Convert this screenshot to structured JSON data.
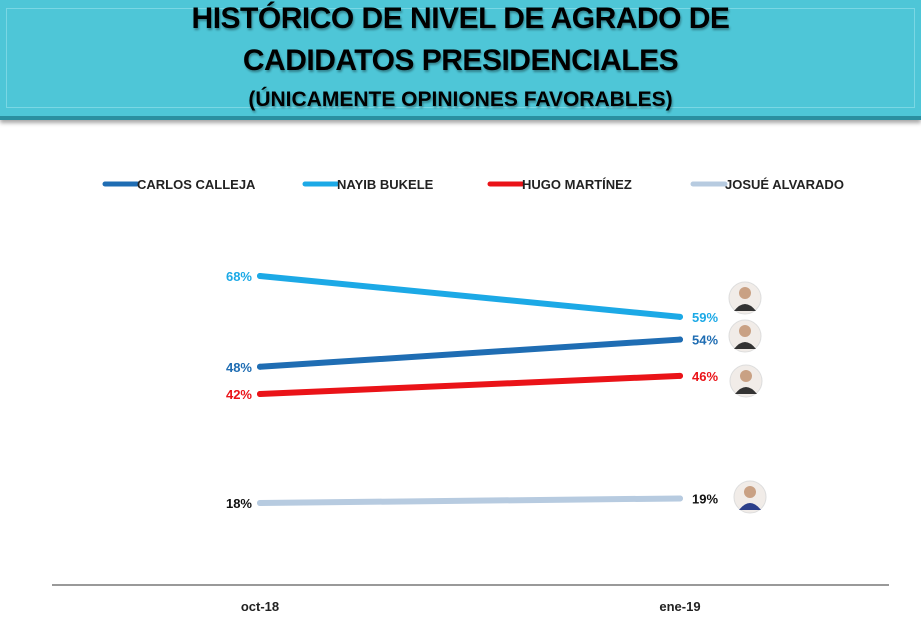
{
  "chart_data": {
    "type": "line",
    "title": "HISTÓRICO DE NIVEL DE AGRADO DE",
    "title_line2": "CADIDATOS PRESIDENCIALES",
    "subtitle": "(ÚNICAMENTE OPINIONES FAVORABLES)",
    "categories": [
      "oct-18",
      "ene-19"
    ],
    "ylim": [
      0,
      80
    ],
    "grid": false,
    "legend_placement": "top",
    "series": [
      {
        "name": "CARLOS CALLEJA",
        "values": [
          48,
          54
        ],
        "labels": [
          "48%",
          "54%"
        ],
        "color": "#1f6db3"
      },
      {
        "name": "NAYIB BUKELE",
        "values": [
          68,
          59
        ],
        "labels": [
          "68%",
          "59%"
        ],
        "color": "#1ca9e6"
      },
      {
        "name": "HUGO MARTÍNEZ",
        "values": [
          42,
          46
        ],
        "labels": [
          "42%",
          "46%"
        ],
        "color": "#ea1318"
      },
      {
        "name": "JOSUÉ ALVARADO",
        "values": [
          18,
          19
        ],
        "labels": [
          "18%",
          "19%"
        ],
        "color": "#b7cbe0",
        "label_color": "#111111"
      }
    ]
  }
}
